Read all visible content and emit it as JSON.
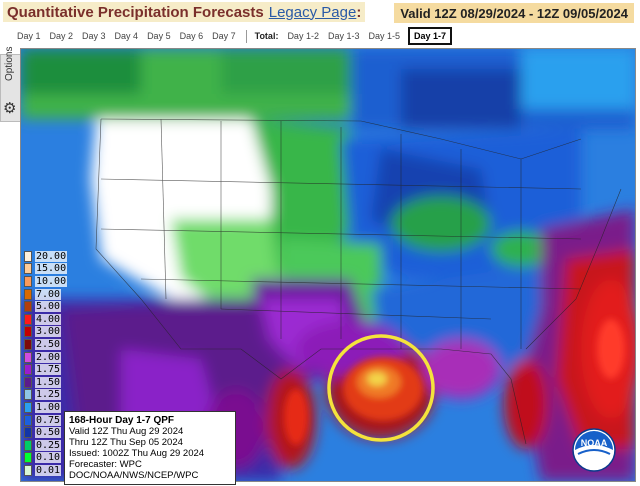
{
  "header": {
    "title": "Quantitative Precipitation Forecasts",
    "legacy_link": "Legacy Page",
    "colon": ":",
    "valid_range": "Valid 12Z 08/29/2024 - 12Z 09/05/2024"
  },
  "tabs": {
    "day_tabs": [
      "Day 1",
      "Day 2",
      "Day 3",
      "Day 4",
      "Day 5",
      "Day 6",
      "Day 7"
    ],
    "total_label": "Total:",
    "total_tabs": [
      "Day 1-2",
      "Day 1-3",
      "Day 1-5"
    ],
    "active_tab": "Day 1-7"
  },
  "options_panel": {
    "label": "Options",
    "icon": "gear-icon"
  },
  "legend": {
    "values": [
      "20.00",
      "15.00",
      "10.00",
      "7.00",
      "5.00",
      "4.00",
      "3.00",
      "2.50",
      "2.00",
      "1.75",
      "1.50",
      "1.25",
      "1.00",
      "0.75",
      "0.50",
      "0.25",
      "0.10",
      "0.01"
    ],
    "colors": [
      "#fef0dc",
      "#fdcb97",
      "#fd9a5a",
      "#d96a00",
      "#b33d0c",
      "#ff1a1a",
      "#c40000",
      "#7d0a0a",
      "#d14ce0",
      "#9a1ccf",
      "#5c1a8c",
      "#8ec6e6",
      "#2a9ff0",
      "#1c5fde",
      "#1235a8",
      "#00cc66",
      "#00ff33",
      "#d8f7d6"
    ]
  },
  "info_box": {
    "title": "168-Hour Day 1-7 QPF",
    "valid": "Valid 12Z Thu Aug 29 2024",
    "thru": "Thru 12Z Thu Sep 05 2024",
    "issued": "Issued: 1002Z Thu Aug 29 2024",
    "forecaster": "Forecaster: WPC",
    "agency": "DOC/NOAA/NWS/NCEP/WPC"
  },
  "logo": {
    "text": "NOAA"
  },
  "map": {
    "highlight_color": "#f4e33c"
  }
}
